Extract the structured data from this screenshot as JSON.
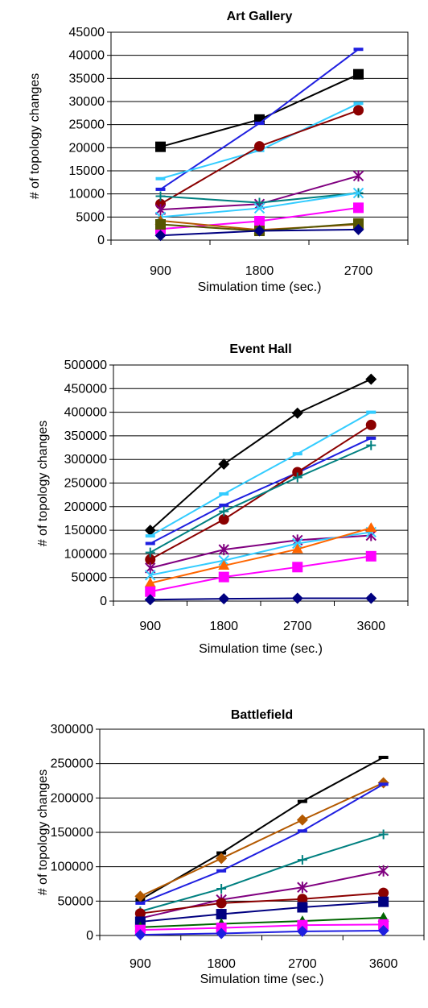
{
  "chart_data": [
    {
      "type": "line",
      "title": "Art Gallery",
      "xlabel": "Simulation time (sec.)",
      "ylabel": "# of topology changes",
      "categories": [
        "900",
        "1800",
        "2700"
      ],
      "ylim": [
        0,
        45000
      ],
      "yticks": [
        "0",
        "5000",
        "10000",
        "15000",
        "20000",
        "25000",
        "30000",
        "35000",
        "40000",
        "45000"
      ],
      "grid": true,
      "legend": "none",
      "series": [
        {
          "color": "#000000",
          "marker": "square",
          "values": [
            20200,
            26100,
            35900
          ]
        },
        {
          "color": "#1f1fe0",
          "marker": "dash",
          "values": [
            11000,
            25300,
            41300
          ]
        },
        {
          "color": "#33ccff",
          "marker": "dash",
          "values": [
            13300,
            19400,
            29600
          ]
        },
        {
          "color": "#8b0000",
          "marker": "circle",
          "values": [
            7800,
            20300,
            28100
          ]
        },
        {
          "color": "#800080",
          "marker": "asterisk",
          "values": [
            6600,
            7800,
            13900
          ]
        },
        {
          "color": "#008080",
          "marker": "plus",
          "values": [
            9500,
            8100,
            10200
          ]
        },
        {
          "color": "#33ccff",
          "marker": "x",
          "values": [
            5000,
            6900,
            10200
          ]
        },
        {
          "color": "#ff00ff",
          "marker": "square",
          "values": [
            2400,
            4100,
            7000
          ]
        },
        {
          "color": "#b35900",
          "marker": "triangle",
          "values": [
            4200,
            2200,
            3400
          ]
        },
        {
          "color": "#555500",
          "marker": "square",
          "values": [
            3400,
            2000,
            3600
          ]
        },
        {
          "color": "#000080",
          "marker": "diamond",
          "values": [
            1000,
            2000,
            2300
          ]
        }
      ]
    },
    {
      "type": "line",
      "title": "Event Hall",
      "xlabel": "Simulation time (sec.)",
      "ylabel": "# of topology changes",
      "categories": [
        "900",
        "1800",
        "2700",
        "3600"
      ],
      "ylim": [
        0,
        500000
      ],
      "yticks": [
        "0",
        "50000",
        "100000",
        "150000",
        "200000",
        "250000",
        "300000",
        "350000",
        "400000",
        "450000",
        "500000"
      ],
      "grid": true,
      "legend": "none",
      "series": [
        {
          "color": "#000000",
          "marker": "diamond",
          "values": [
            150000,
            290000,
            398000,
            470000
          ]
        },
        {
          "color": "#33ccff",
          "marker": "dash",
          "values": [
            138000,
            227000,
            312000,
            400000
          ]
        },
        {
          "color": "#1f1fe0",
          "marker": "dash",
          "values": [
            122000,
            203000,
            272000,
            345000
          ]
        },
        {
          "color": "#8b0000",
          "marker": "circle",
          "values": [
            88000,
            173000,
            273000,
            373000
          ]
        },
        {
          "color": "#008080",
          "marker": "plus",
          "values": [
            103000,
            190000,
            262000,
            330000
          ]
        },
        {
          "color": "#800080",
          "marker": "asterisk",
          "values": [
            70000,
            109000,
            129000,
            139000
          ]
        },
        {
          "color": "#33ccff",
          "marker": "x",
          "values": [
            55000,
            86000,
            122000,
            146000
          ]
        },
        {
          "color": "#ff6600",
          "marker": "triangle",
          "values": [
            38000,
            75000,
            110000,
            155000
          ]
        },
        {
          "color": "#ff00ff",
          "marker": "square",
          "values": [
            20000,
            51000,
            72000,
            95000
          ]
        },
        {
          "color": "#000080",
          "marker": "diamond",
          "values": [
            3000,
            5000,
            6000,
            6000
          ]
        }
      ]
    },
    {
      "type": "line",
      "title": "Battlefield",
      "xlabel": "Simulation time (sec.)",
      "ylabel": "# of topology changes",
      "categories": [
        "900",
        "1800",
        "2700",
        "3600"
      ],
      "ylim": [
        0,
        300000
      ],
      "yticks": [
        "0",
        "50000",
        "100000",
        "150000",
        "200000",
        "250000",
        "300000"
      ],
      "grid": true,
      "legend": "none",
      "series": [
        {
          "color": "#000000",
          "marker": "dash",
          "values": [
            52000,
            120000,
            195000,
            259000
          ]
        },
        {
          "color": "#b35900",
          "marker": "diamond",
          "values": [
            57000,
            112000,
            168000,
            222000
          ]
        },
        {
          "color": "#1f1fe0",
          "marker": "dash",
          "values": [
            47000,
            94000,
            152000,
            220000
          ]
        },
        {
          "color": "#008080",
          "marker": "plus",
          "values": [
            35000,
            68000,
            110000,
            147000
          ]
        },
        {
          "color": "#800080",
          "marker": "asterisk",
          "values": [
            25000,
            52000,
            70000,
            94000
          ]
        },
        {
          "color": "#8b0000",
          "marker": "circle",
          "values": [
            32000,
            47000,
            53000,
            62000
          ]
        },
        {
          "color": "#000080",
          "marker": "square",
          "values": [
            20000,
            31000,
            41000,
            49000
          ]
        },
        {
          "color": "#006400",
          "marker": "triangle",
          "values": [
            12000,
            17000,
            21000,
            26000
          ]
        },
        {
          "color": "#ff00ff",
          "marker": "square",
          "values": [
            8000,
            11000,
            15000,
            16000
          ]
        },
        {
          "color": "#1f1fe0",
          "marker": "diamond",
          "values": [
            1000,
            3000,
            6000,
            7000
          ]
        }
      ]
    }
  ]
}
